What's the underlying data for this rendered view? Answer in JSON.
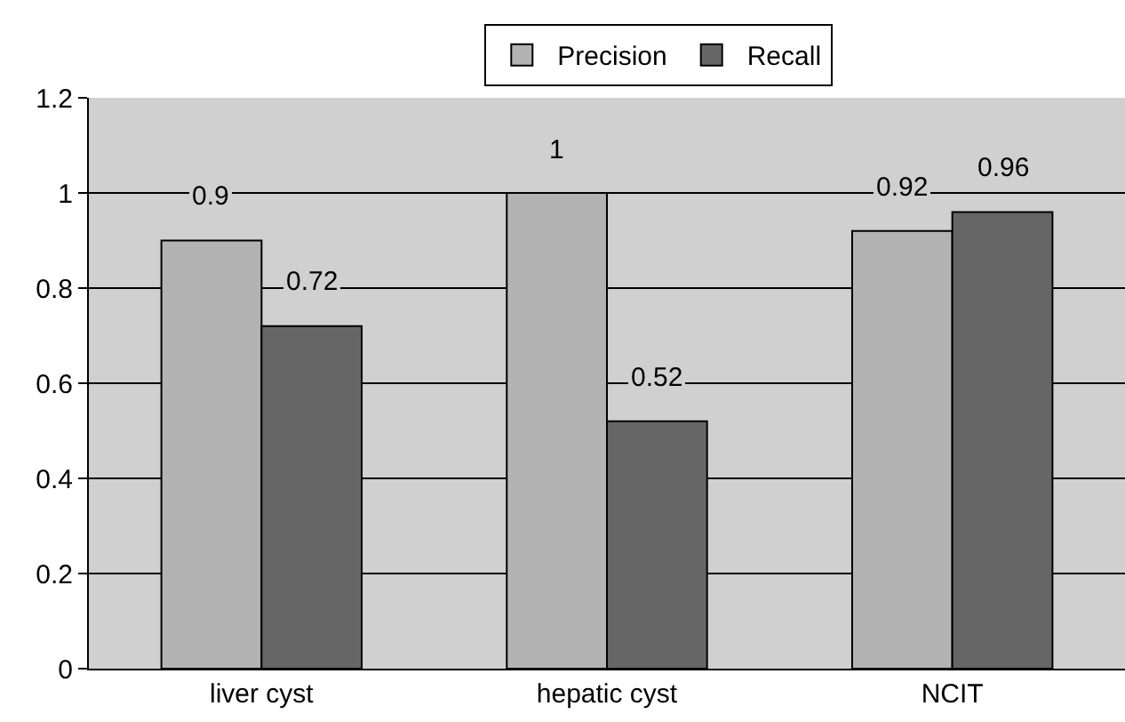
{
  "chart_data": {
    "type": "bar",
    "categories": [
      "liver cyst",
      "hepatic cyst",
      "NCIT"
    ],
    "series": [
      {
        "name": "Precision",
        "color": "#b3b3b3",
        "values": [
          0.9,
          1,
          0.92
        ]
      },
      {
        "name": "Recall",
        "color": "#666666",
        "values": [
          0.72,
          0.52,
          0.96
        ]
      }
    ],
    "ylim": [
      0,
      1.2
    ],
    "yticks": [
      0,
      0.2,
      0.4,
      0.6,
      0.8,
      1,
      1.2
    ],
    "grid": "y",
    "legend": "top",
    "data_labels": true
  }
}
